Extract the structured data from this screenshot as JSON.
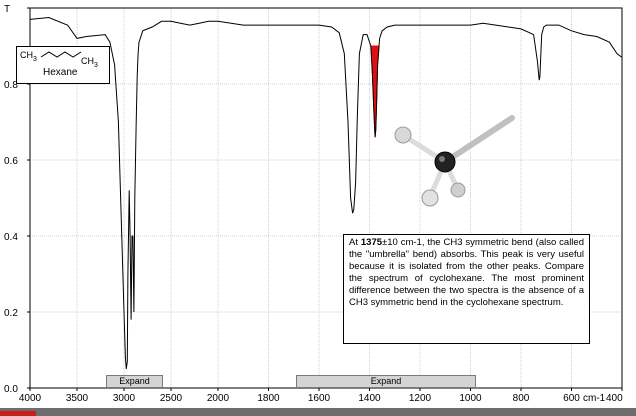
{
  "chart_data": {
    "type": "line",
    "ylabel": "T",
    "xlabel": "cm-1",
    "xlim": [
      4000,
      400
    ],
    "ylim": [
      0.0,
      1.0
    ],
    "x_ticks": [
      4000,
      3500,
      3000,
      2500,
      2000,
      1800,
      1600,
      1400,
      1200,
      1000,
      800,
      600,
      400
    ],
    "x_tick_labels": [
      "4000",
      "3500",
      "3000",
      "2500",
      "2000",
      "1800",
      "1600",
      "1400",
      "1200",
      "1000",
      "800",
      "600",
      "400"
    ],
    "y_ticks": [
      0.0,
      0.2,
      0.4,
      0.6,
      0.8,
      1.0
    ],
    "y_tick_labels": [
      "0.0",
      "0.2",
      "0.4",
      "0.6",
      "0.8",
      "T"
    ],
    "x_axis_note": "x-axis scale changes at 2000 cm-1",
    "series": [
      {
        "x": [
          4000,
          3800,
          3600,
          3500,
          3400,
          3200,
          3150,
          3100,
          3060,
          3030,
          3000,
          2985,
          2975,
          2965,
          2958,
          2945,
          2935,
          2925,
          2915,
          2905,
          2895,
          2885,
          2870,
          2860,
          2850,
          2840,
          2800,
          2750,
          2700,
          2600,
          2500,
          2400,
          2300,
          2200,
          2100,
          2000,
          1900,
          1800,
          1700,
          1600,
          1550,
          1520,
          1500,
          1485,
          1475,
          1467,
          1462,
          1455,
          1448,
          1440,
          1425,
          1410,
          1395,
          1388,
          1382,
          1378,
          1375,
          1372,
          1368,
          1360,
          1350,
          1330,
          1300,
          1250,
          1200,
          1100,
          1000,
          950,
          900,
          850,
          800,
          750,
          735,
          728,
          725,
          722,
          718,
          710,
          700,
          650,
          600,
          550,
          500,
          450,
          420,
          400
        ],
        "y": [
          0.97,
          0.975,
          0.955,
          0.92,
          0.925,
          0.93,
          0.91,
          0.85,
          0.7,
          0.45,
          0.2,
          0.08,
          0.05,
          0.07,
          0.3,
          0.52,
          0.4,
          0.18,
          0.4,
          0.4,
          0.2,
          0.5,
          0.7,
          0.82,
          0.88,
          0.91,
          0.94,
          0.945,
          0.95,
          0.965,
          0.965,
          0.96,
          0.955,
          0.96,
          0.965,
          0.965,
          0.955,
          0.955,
          0.955,
          0.955,
          0.95,
          0.935,
          0.88,
          0.7,
          0.5,
          0.46,
          0.47,
          0.54,
          0.72,
          0.88,
          0.93,
          0.93,
          0.9,
          0.82,
          0.72,
          0.66,
          0.68,
          0.75,
          0.85,
          0.92,
          0.94,
          0.95,
          0.955,
          0.955,
          0.955,
          0.955,
          0.955,
          0.96,
          0.955,
          0.95,
          0.945,
          0.93,
          0.86,
          0.81,
          0.82,
          0.87,
          0.93,
          0.95,
          0.955,
          0.955,
          0.94,
          0.93,
          0.925,
          0.91,
          0.88,
          0.87
        ]
      }
    ],
    "highlighted_peak": {
      "center": 1375,
      "from": 1392,
      "to": 1362,
      "color": "#e01010"
    },
    "grid": true
  },
  "structure_label": {
    "left_group": "CH",
    "left_sub": "3",
    "right_group": "CH",
    "right_sub": "3",
    "name": "Hexane"
  },
  "info_panel": {
    "lead": "At ",
    "wavenumber_bold": "1375",
    "rest": "±10 cm-1, the CH3 symmetric bend (also called the \"umbrella\" bend) absorbs. This peak is very useful because it is isolated from the other peaks. Compare the spectrum of cyclohexane. The most prominent difference between the two spectra is the absence of a CH3 symmetric bend in the cyclohexane spectrum."
  },
  "buttons": {
    "expand_left": "Expand",
    "expand_right": "Expand"
  },
  "axis_unit_label": "cm-1"
}
